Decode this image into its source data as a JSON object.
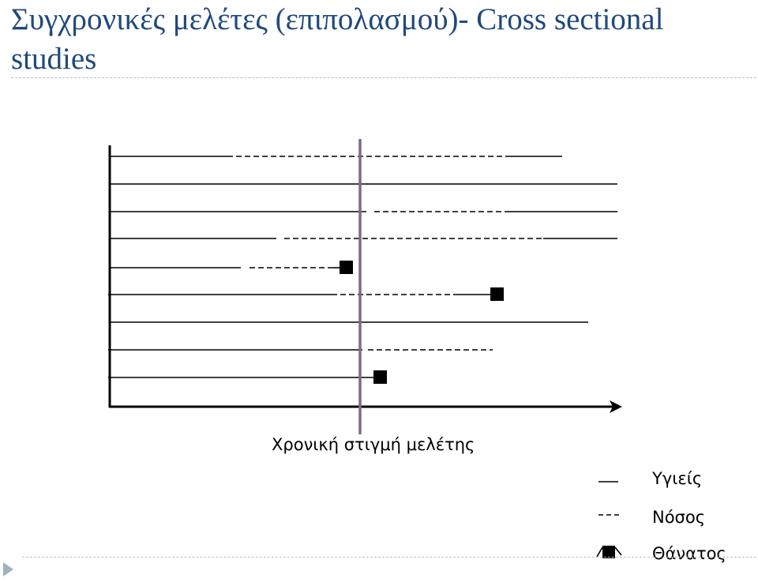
{
  "slide": {
    "title": "Συγχρονικές μελέτες (επιπολασμού)- Cross sectional studies"
  },
  "diagram": {
    "axis_caption": "Χρονική στιγμή μελέτης",
    "legend": {
      "healthy": "Υγιείς",
      "disease": "Νόσος",
      "death": "Θάνατος"
    },
    "colors": {
      "study_line": "#7b6a8e",
      "ink": "#000000"
    },
    "icons": {
      "death_marker": "black-square-icon"
    }
  }
}
